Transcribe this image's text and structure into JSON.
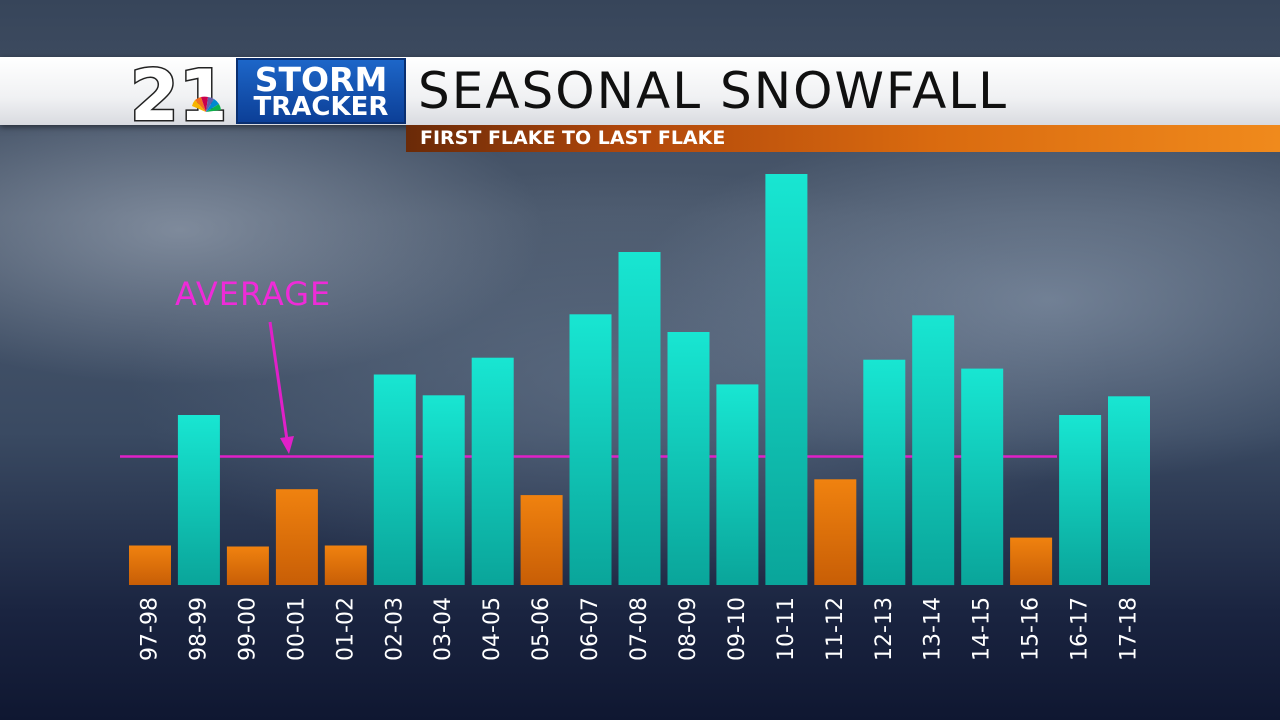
{
  "header": {
    "logo_number": "21",
    "logo_line1": "STORM",
    "logo_line2": "TRACKER",
    "title": "SEASONAL SNOWFALL",
    "subtitle": "FIRST FLAKE TO LAST FLAKE"
  },
  "colors": {
    "above_average": "#14d8c4",
    "below_average": "#e8780e",
    "average_line": "#e020c8",
    "average_label": "#ee2bd8"
  },
  "chart_data": {
    "type": "bar",
    "title": "SEASONAL SNOWFALL",
    "subtitle": "FIRST FLAKE TO LAST FLAKE",
    "xlabel": "",
    "ylabel": "",
    "grid": false,
    "categories": [
      "97-98",
      "98-99",
      "99-00",
      "00-01",
      "01-02",
      "02-03",
      "03-04",
      "04-05",
      "05-06",
      "06-07",
      "07-08",
      "08-09",
      "09-10",
      "10-11",
      "11-12",
      "12-13",
      "13-14",
      "14-15",
      "15-16",
      "16-17",
      "17-18"
    ],
    "values": [
      40,
      172,
      39,
      97,
      40,
      213,
      192,
      230,
      91,
      274,
      337,
      256,
      203,
      416,
      107,
      228,
      273,
      219,
      48,
      172,
      191
    ],
    "average": 130,
    "average_label": "AVERAGE",
    "ylim": [
      0,
      420
    ]
  }
}
